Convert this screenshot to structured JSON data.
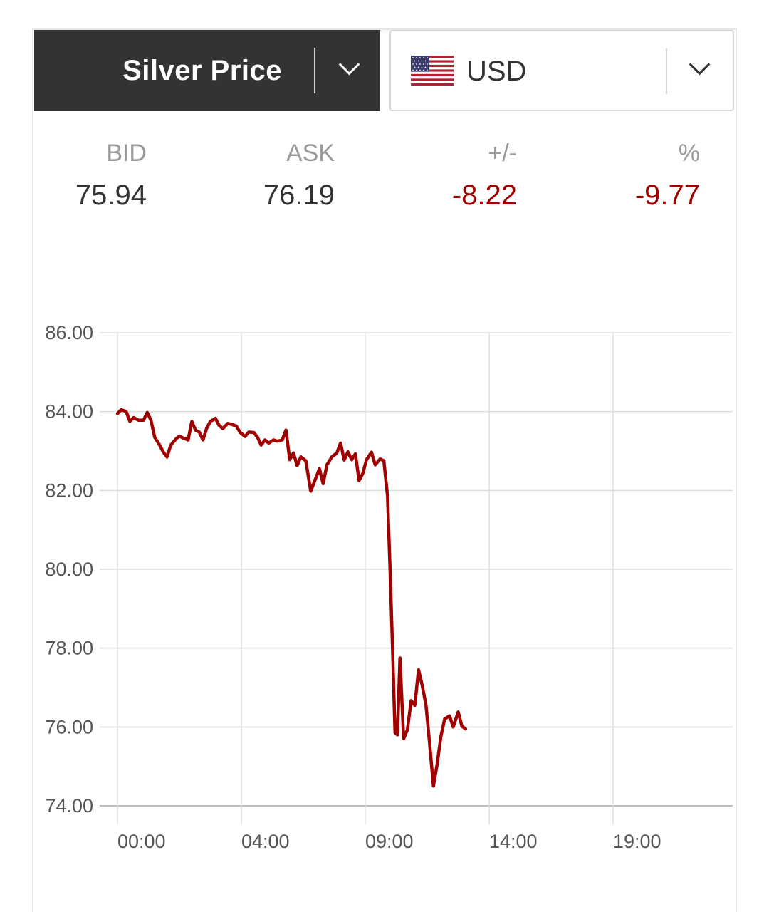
{
  "selectors": {
    "metal": {
      "label": "Silver Price",
      "icon": "chevron-down-icon"
    },
    "currency": {
      "label": "USD",
      "flag_icon": "us-flag-icon",
      "icon": "chevron-down-icon"
    }
  },
  "quote": {
    "bid": {
      "label": "BID",
      "value": "75.94"
    },
    "ask": {
      "label": "ASK",
      "value": "76.19"
    },
    "change": {
      "label": "+/-",
      "value": "-8.22"
    },
    "percent": {
      "label": "%",
      "value": "-9.77"
    }
  },
  "colors": {
    "header_bg": "#333333",
    "negative": "#a00000",
    "line": "#a00000",
    "grid": "#dddddd"
  },
  "chart_data": {
    "type": "line",
    "title": "",
    "xlabel": "",
    "ylabel": "",
    "ylim": [
      74,
      86
    ],
    "y_ticks": [
      "86.00",
      "84.00",
      "82.00",
      "80.00",
      "78.00",
      "76.00",
      "74.00"
    ],
    "x_ticks": [
      "00:00",
      "04:00",
      "09:00",
      "14:00",
      "19:00"
    ],
    "grid": true,
    "legend": "none",
    "series": [
      {
        "values": [
          [
            0.0,
            83.95
          ],
          [
            0.15,
            84.05
          ],
          [
            0.35,
            84.0
          ],
          [
            0.5,
            83.75
          ],
          [
            0.65,
            83.85
          ],
          [
            0.85,
            83.78
          ],
          [
            1.05,
            83.78
          ],
          [
            1.2,
            83.98
          ],
          [
            1.35,
            83.78
          ],
          [
            1.5,
            83.35
          ],
          [
            1.7,
            83.15
          ],
          [
            1.85,
            82.97
          ],
          [
            2.0,
            82.85
          ],
          [
            2.15,
            83.15
          ],
          [
            2.35,
            83.3
          ],
          [
            2.5,
            83.38
          ],
          [
            2.65,
            83.33
          ],
          [
            2.85,
            83.28
          ],
          [
            3.0,
            83.75
          ],
          [
            3.15,
            83.53
          ],
          [
            3.3,
            83.48
          ],
          [
            3.45,
            83.28
          ],
          [
            3.6,
            83.58
          ],
          [
            3.75,
            83.75
          ],
          [
            3.95,
            83.83
          ],
          [
            4.1,
            83.65
          ],
          [
            4.25,
            83.57
          ],
          [
            4.45,
            83.7
          ],
          [
            4.6,
            83.68
          ],
          [
            4.8,
            83.63
          ],
          [
            4.95,
            83.47
          ],
          [
            5.15,
            83.37
          ],
          [
            5.3,
            83.48
          ],
          [
            5.5,
            83.47
          ],
          [
            5.65,
            83.35
          ],
          [
            5.8,
            83.15
          ],
          [
            5.95,
            83.28
          ],
          [
            6.1,
            83.2
          ],
          [
            6.3,
            83.28
          ],
          [
            6.45,
            83.25
          ],
          [
            6.65,
            83.28
          ],
          [
            6.8,
            83.53
          ],
          [
            6.95,
            82.78
          ],
          [
            7.1,
            82.95
          ],
          [
            7.25,
            82.63
          ],
          [
            7.4,
            82.85
          ],
          [
            7.6,
            82.75
          ],
          [
            7.8,
            81.98
          ],
          [
            7.95,
            82.23
          ],
          [
            8.15,
            82.55
          ],
          [
            8.3,
            82.17
          ],
          [
            8.45,
            82.65
          ],
          [
            8.65,
            82.85
          ],
          [
            8.85,
            82.95
          ],
          [
            9.0,
            83.2
          ],
          [
            9.15,
            82.77
          ],
          [
            9.3,
            82.98
          ],
          [
            9.45,
            82.78
          ],
          [
            9.6,
            82.93
          ],
          [
            9.75,
            82.25
          ],
          [
            9.9,
            82.43
          ],
          [
            10.05,
            82.78
          ],
          [
            10.25,
            82.97
          ],
          [
            10.4,
            82.65
          ],
          [
            10.6,
            82.8
          ],
          [
            10.75,
            82.75
          ],
          [
            10.9,
            81.85
          ],
          [
            11.0,
            80.0
          ],
          [
            11.1,
            78.0
          ],
          [
            11.2,
            75.85
          ],
          [
            11.3,
            75.8
          ],
          [
            11.4,
            77.75
          ],
          [
            11.55,
            75.7
          ],
          [
            11.7,
            75.93
          ],
          [
            11.85,
            76.67
          ],
          [
            12.0,
            76.55
          ],
          [
            12.15,
            77.45
          ],
          [
            12.3,
            77.05
          ],
          [
            12.45,
            76.55
          ],
          [
            12.6,
            75.55
          ],
          [
            12.75,
            74.5
          ],
          [
            12.9,
            75.05
          ],
          [
            13.05,
            75.75
          ],
          [
            13.2,
            76.2
          ],
          [
            13.4,
            76.28
          ],
          [
            13.55,
            76.0
          ],
          [
            13.75,
            76.38
          ],
          [
            13.9,
            76.02
          ],
          [
            14.05,
            75.95
          ]
        ]
      }
    ]
  }
}
